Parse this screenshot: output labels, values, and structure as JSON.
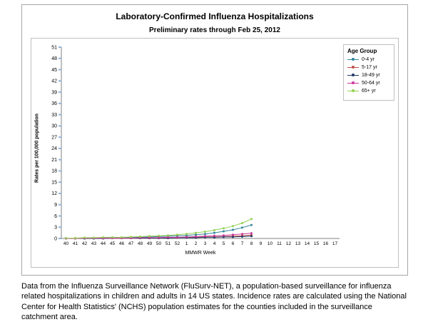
{
  "figure": {
    "title": "Laboratory-Confirmed Influenza Hospitalizations",
    "subtitle": "Preliminary rates through Feb 25, 2012"
  },
  "chart_data": {
    "type": "line",
    "title": "Laboratory-Confirmed Influenza Hospitalizations",
    "subtitle": "Preliminary rates through Feb 25, 2012",
    "xlabel": "MMWR Week",
    "ylabel": "Rates per 100,000 population",
    "ylim": [
      0,
      51
    ],
    "ytick_step": 3,
    "grid": false,
    "legend_title": "Age Group",
    "legend_position": "right-top",
    "categories": [
      "40",
      "41",
      "42",
      "43",
      "44",
      "45",
      "46",
      "47",
      "48",
      "49",
      "50",
      "51",
      "52",
      "1",
      "2",
      "3",
      "4",
      "5",
      "6",
      "7",
      "8",
      "9",
      "10",
      "11",
      "12",
      "13",
      "14",
      "15",
      "16",
      "17"
    ],
    "series": [
      {
        "name": "0-4 yr",
        "color": "#31859C",
        "values": [
          0.1,
          0.1,
          0.1,
          0.1,
          0.2,
          0.2,
          0.2,
          0.3,
          0.3,
          0.4,
          0.5,
          0.6,
          0.7,
          0.8,
          1.0,
          1.2,
          1.5,
          1.9,
          2.3,
          2.9,
          3.6,
          null,
          null,
          null,
          null,
          null,
          null,
          null,
          null,
          null
        ]
      },
      {
        "name": "5-17 yr",
        "color": "#C0504D",
        "values": [
          0.0,
          0.0,
          0.0,
          0.0,
          0.1,
          0.1,
          0.1,
          0.1,
          0.1,
          0.1,
          0.2,
          0.2,
          0.2,
          0.3,
          0.3,
          0.4,
          0.4,
          0.5,
          0.6,
          0.7,
          0.9,
          null,
          null,
          null,
          null,
          null,
          null,
          null,
          null,
          null
        ]
      },
      {
        "name": "18-49 yr",
        "color": "#1F3864",
        "values": [
          0.0,
          0.0,
          0.0,
          0.0,
          0.0,
          0.1,
          0.1,
          0.1,
          0.1,
          0.1,
          0.1,
          0.1,
          0.2,
          0.2,
          0.2,
          0.3,
          0.3,
          0.4,
          0.4,
          0.5,
          0.6,
          null,
          null,
          null,
          null,
          null,
          null,
          null,
          null,
          null
        ]
      },
      {
        "name": "50-64 yr",
        "color": "#CC3399",
        "values": [
          0.0,
          0.0,
          0.1,
          0.1,
          0.1,
          0.1,
          0.1,
          0.1,
          0.2,
          0.2,
          0.2,
          0.3,
          0.3,
          0.4,
          0.5,
          0.6,
          0.7,
          0.8,
          1.0,
          1.2,
          1.4,
          null,
          null,
          null,
          null,
          null,
          null,
          null,
          null,
          null
        ]
      },
      {
        "name": "65+ yr",
        "color": "#92D050",
        "values": [
          0.1,
          0.1,
          0.2,
          0.2,
          0.3,
          0.3,
          0.3,
          0.4,
          0.5,
          0.6,
          0.7,
          0.8,
          1.0,
          1.2,
          1.5,
          1.8,
          2.2,
          2.7,
          3.3,
          4.1,
          5.2,
          null,
          null,
          null,
          null,
          null,
          null,
          null,
          null,
          null
        ]
      }
    ]
  },
  "caption": "Data from the Influenza Surveillance Network (FluSurv-NET), a population-based surveillance for influenza related hospitalizations in children and adults in 14 US states. Incidence rates are calculated using the National Center for Health Statistics' (NCHS) population estimates for the counties included in the surveillance catchment area."
}
